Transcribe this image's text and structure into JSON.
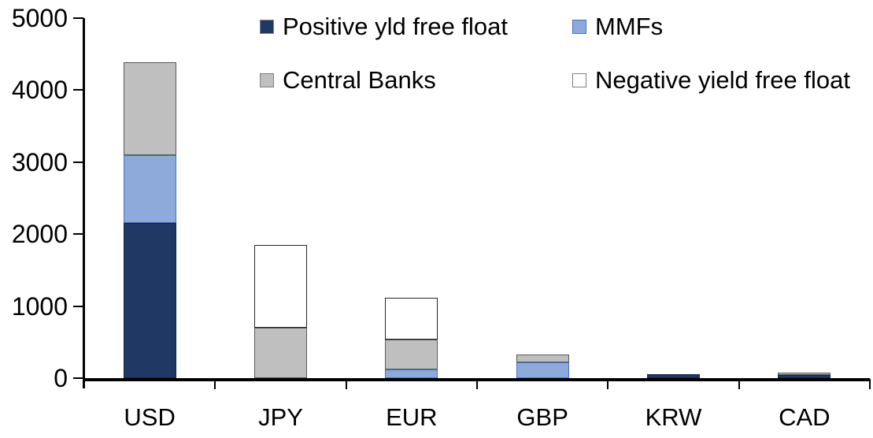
{
  "chart_data": {
    "type": "bar",
    "stacked": true,
    "title": "",
    "xlabel": "",
    "ylabel": "",
    "categories": [
      "USD",
      "JPY",
      "EUR",
      "GBP",
      "KRW",
      "CAD"
    ],
    "series": [
      {
        "name": "Positive yld free float",
        "color": "#1F3864",
        "border": "#14243f",
        "values": [
          2160,
          0,
          0,
          0,
          50,
          40
        ]
      },
      {
        "name": "MMFs",
        "color": "#8EAADB",
        "border": "#4472C4",
        "values": [
          940,
          0,
          120,
          220,
          0,
          0
        ]
      },
      {
        "name": "Central Banks",
        "color": "#BFBFBF",
        "border": "#595959",
        "values": [
          1290,
          700,
          420,
          110,
          0,
          30
        ]
      },
      {
        "name": "Negative yield free float",
        "color": "#FFFFFF",
        "border": "#262626",
        "values": [
          0,
          1150,
          580,
          0,
          0,
          0
        ]
      }
    ],
    "totals": [
      4390,
      1850,
      1120,
      330,
      50,
      70
    ],
    "ylim": [
      0,
      5000
    ],
    "yticks": [
      "5000",
      "4000",
      "3000",
      "2000",
      "1000",
      "0"
    ],
    "ytick_values": [
      5000,
      4000,
      3000,
      2000,
      1000,
      0
    ],
    "grid": false,
    "legend_position": "top",
    "axis_color": "#000000",
    "text_color": "#000000"
  },
  "legend": {
    "row1_left": "Positive yld free float",
    "row1_right": "MMFs",
    "row2_left": "Central Banks",
    "row2_right": "Negative yield free float"
  }
}
